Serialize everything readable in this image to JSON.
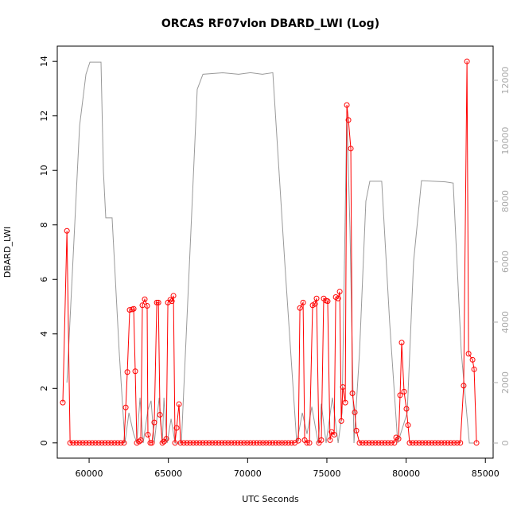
{
  "chart_data": {
    "type": "line",
    "title": "ORCAS RF07vlon DBARD_LWI (Log)",
    "x_label": "UTC Seconds",
    "y_label": "DBARD_LWI",
    "xlim": [
      57990,
      85490
    ],
    "ylim": [
      -0.56,
      14.56
    ],
    "y2lim": [
      -500,
      13130
    ],
    "xticks": [
      60000,
      65000,
      70000,
      75000,
      80000,
      85000
    ],
    "yticks": [
      0,
      2,
      4,
      6,
      8,
      10,
      12,
      14
    ],
    "y2ticks": [
      0,
      2000,
      4000,
      6000,
      8000,
      10000,
      12000
    ],
    "series": [
      {
        "color": "#ff0000",
        "markers": true,
        "x": [
          58340,
          58600,
          58800,
          59000,
          59200,
          59400,
          59600,
          59800,
          60000,
          60200,
          60400,
          60600,
          60800,
          61000,
          61200,
          61400,
          61600,
          61800,
          62000,
          62200,
          62310,
          62410,
          62560,
          62710,
          62810,
          62910,
          63010,
          63160,
          63260,
          63360,
          63510,
          63660,
          63710,
          63860,
          63960,
          64110,
          64270,
          64370,
          64470,
          64620,
          64720,
          64870,
          64970,
          65120,
          65220,
          65320,
          65420,
          65520,
          65670,
          65770,
          65970,
          66170,
          66370,
          66570,
          66770,
          66970,
          67170,
          67370,
          67570,
          67770,
          67970,
          68170,
          68370,
          68570,
          68770,
          68970,
          69170,
          69370,
          69570,
          69770,
          69970,
          70170,
          70370,
          70570,
          70770,
          70970,
          71170,
          71370,
          71570,
          71770,
          71970,
          72170,
          72370,
          72570,
          72770,
          72970,
          73200,
          73300,
          73500,
          73600,
          73750,
          73900,
          74100,
          74250,
          74350,
          74500,
          74650,
          74800,
          74950,
          75050,
          75200,
          75300,
          75460,
          75560,
          75710,
          75810,
          75910,
          76010,
          76160,
          76260,
          76360,
          76510,
          76610,
          76760,
          76860,
          77060,
          77260,
          77460,
          77660,
          77860,
          78060,
          78260,
          78460,
          78660,
          78860,
          79060,
          79260,
          79370,
          79520,
          79620,
          79720,
          79870,
          80020,
          80120,
          80220,
          80420,
          80620,
          80820,
          81020,
          81220,
          81420,
          81620,
          81820,
          82020,
          82220,
          82420,
          82620,
          82820,
          83020,
          83220,
          83420,
          83630,
          83840,
          83940,
          84190,
          84290,
          84440
        ],
        "values": [
          1.48,
          7.78,
          0,
          0,
          0,
          0,
          0,
          0,
          0,
          0,
          0,
          0,
          0,
          0,
          0,
          0,
          0,
          0,
          0,
          0,
          1.3,
          2.6,
          4.88,
          4.9,
          4.92,
          2.63,
          0,
          0.05,
          0.1,
          5.05,
          5.27,
          5.03,
          0.3,
          0,
          0,
          0.75,
          5.15,
          5.15,
          1.03,
          0,
          0.05,
          0.15,
          5.15,
          5.25,
          5.2,
          5.4,
          0,
          0.55,
          1.42,
          0,
          0,
          0,
          0,
          0,
          0,
          0,
          0,
          0,
          0,
          0,
          0,
          0,
          0,
          0,
          0,
          0,
          0,
          0,
          0,
          0,
          0,
          0,
          0,
          0,
          0,
          0,
          0,
          0,
          0,
          0,
          0,
          0,
          0,
          0,
          0,
          0,
          0.08,
          4.95,
          5.15,
          0.1,
          0,
          0,
          5.05,
          5.1,
          5.3,
          0,
          0.1,
          5.3,
          5.22,
          5.2,
          0.1,
          0.4,
          0.3,
          5.35,
          5.3,
          5.55,
          0.8,
          2.05,
          1.48,
          12.4,
          11.85,
          10.8,
          1.82,
          1.12,
          0.45,
          0,
          0,
          0,
          0,
          0,
          0,
          0,
          0,
          0,
          0,
          0,
          0,
          0.2,
          0.15,
          1.75,
          3.68,
          1.88,
          1.25,
          0.65,
          0,
          0,
          0,
          0,
          0,
          0,
          0,
          0,
          0,
          0,
          0,
          0,
          0,
          0,
          0,
          0,
          0,
          2.1,
          14,
          3.27,
          3.05,
          2.7,
          0
        ]
      },
      {
        "color": "#999999",
        "axis": "y2",
        "markers": false,
        "x": [
          58600,
          59400,
          59800,
          60050,
          60750,
          60900,
          61050,
          61450,
          61900,
          62260,
          62510,
          62810,
          63010,
          63210,
          63410,
          63710,
          63910,
          64110,
          64420,
          64620,
          64720,
          64920,
          65170,
          65420,
          65820,
          66420,
          66820,
          67180,
          68430,
          69430,
          70180,
          70930,
          71590,
          72340,
          73100,
          73450,
          73750,
          74050,
          74450,
          74650,
          74950,
          75350,
          75710,
          75960,
          76260,
          76460,
          76710,
          77060,
          77460,
          77710,
          78460,
          78960,
          79470,
          80070,
          80470,
          80970,
          82470,
          82970,
          83480,
          83990,
          84290
        ],
        "values": [
          2000,
          10500,
          12200,
          12600,
          12600,
          9000,
          7450,
          7450,
          3000,
          0,
          1000,
          300,
          0,
          1500,
          0,
          1100,
          1400,
          0,
          1500,
          0,
          1500,
          0,
          800,
          0,
          0,
          7000,
          11700,
          12200,
          12250,
          12200,
          12250,
          12200,
          12250,
          6000,
          0,
          1000,
          300,
          1200,
          0,
          1300,
          0,
          1500,
          0,
          1000,
          11000,
          7000,
          0,
          3000,
          8000,
          8660,
          8660,
          4000,
          0,
          1000,
          6000,
          8680,
          8640,
          8600,
          3000,
          0,
          0
        ]
      }
    ]
  }
}
